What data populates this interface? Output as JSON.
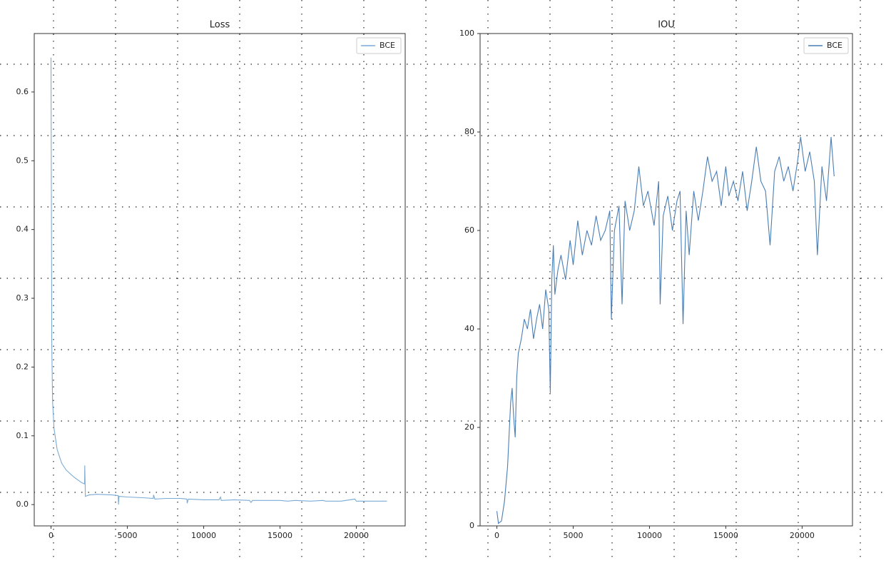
{
  "chart_data": [
    {
      "type": "line",
      "title": "Loss",
      "x": [
        0,
        50,
        100,
        200,
        400,
        700,
        1000,
        1500,
        2000,
        2200,
        2210,
        2250,
        2500,
        3000,
        4000,
        4400,
        4420,
        4450,
        5000,
        6000,
        6700,
        6720,
        6800,
        7500,
        8500,
        8900,
        8920,
        9000,
        10000,
        11000,
        11100,
        11150,
        12000,
        13000,
        13100,
        13200,
        15000,
        15500,
        16000,
        17000,
        17800,
        18000,
        19000,
        19900,
        20000,
        21000,
        22000
      ],
      "series": [
        {
          "name": "BCE",
          "color": "#7aaad6",
          "values": [
            0.65,
            0.23,
            0.15,
            0.11,
            0.08,
            0.06,
            0.05,
            0.04,
            0.032,
            0.03,
            0.057,
            0.012,
            0.014,
            0.015,
            0.014,
            0.013,
            0.0,
            0.012,
            0.011,
            0.01,
            0.009,
            0.014,
            0.008,
            0.009,
            0.009,
            0.008,
            0.002,
            0.008,
            0.007,
            0.007,
            0.011,
            0.006,
            0.007,
            0.006,
            0.003,
            0.006,
            0.006,
            0.005,
            0.006,
            0.005,
            0.006,
            0.005,
            0.005,
            0.008,
            0.005,
            0.005,
            0.005
          ]
        }
      ],
      "xlim": [
        -1100,
        23200
      ],
      "xticks": [
        0,
        5000,
        10000,
        15000,
        20000
      ],
      "ylim": [
        -0.031,
        0.685
      ],
      "yticks": [
        {
          "value": 0,
          "label": "0.0"
        },
        0.1,
        0.2,
        0.3,
        0.4,
        0.5,
        0.6
      ],
      "legend": "upper right"
    },
    {
      "type": "line",
      "title": "IOU",
      "x": [
        0,
        100,
        300,
        500,
        700,
        900,
        1000,
        1100,
        1200,
        1300,
        1400,
        1600,
        1800,
        2000,
        2200,
        2400,
        2600,
        2800,
        3000,
        3200,
        3400,
        3500,
        3600,
        3700,
        3800,
        4000,
        4200,
        4500,
        4800,
        5000,
        5300,
        5600,
        5900,
        6200,
        6500,
        6800,
        7100,
        7400,
        7500,
        7700,
        8000,
        8200,
        8400,
        8700,
        9000,
        9300,
        9600,
        9900,
        10300,
        10600,
        10700,
        10900,
        11200,
        11500,
        11800,
        12000,
        12200,
        12400,
        12600,
        12900,
        13200,
        13500,
        13800,
        14100,
        14400,
        14700,
        15000,
        15200,
        15500,
        15800,
        16100,
        16400,
        16700,
        17000,
        17300,
        17600,
        17900,
        18200,
        18500,
        18800,
        19100,
        19400,
        19700,
        19900,
        20200,
        20500,
        20800,
        21000,
        21300,
        21600,
        21900,
        22100
      ],
      "series": [
        {
          "name": "BCE",
          "color": "#4a7eb5",
          "values": [
            3,
            0.5,
            1,
            5,
            12,
            25,
            28,
            22,
            18,
            30,
            35,
            38,
            42,
            40,
            44,
            38,
            42,
            45,
            40,
            48,
            44,
            27,
            50,
            57,
            47,
            52,
            55,
            50,
            58,
            53,
            62,
            55,
            60,
            57,
            63,
            58,
            60,
            64,
            42,
            60,
            65,
            45,
            66,
            60,
            64,
            73,
            65,
            68,
            61,
            70,
            45,
            63,
            67,
            60,
            66,
            68,
            41,
            64,
            55,
            68,
            62,
            68,
            75,
            70,
            72,
            65,
            73,
            67,
            70,
            66,
            72,
            64,
            70,
            77,
            70,
            68,
            57,
            72,
            75,
            70,
            73,
            68,
            74,
            79,
            72,
            76,
            70,
            55,
            73,
            66,
            79,
            71
          ]
        }
      ],
      "xlim": [
        -1100,
        23300
      ],
      "xticks": [
        0,
        5000,
        10000,
        15000,
        20000
      ],
      "ylim": [
        0,
        100
      ],
      "yticks": [
        0,
        20,
        40,
        60,
        80,
        100
      ],
      "legend": "upper right"
    }
  ]
}
